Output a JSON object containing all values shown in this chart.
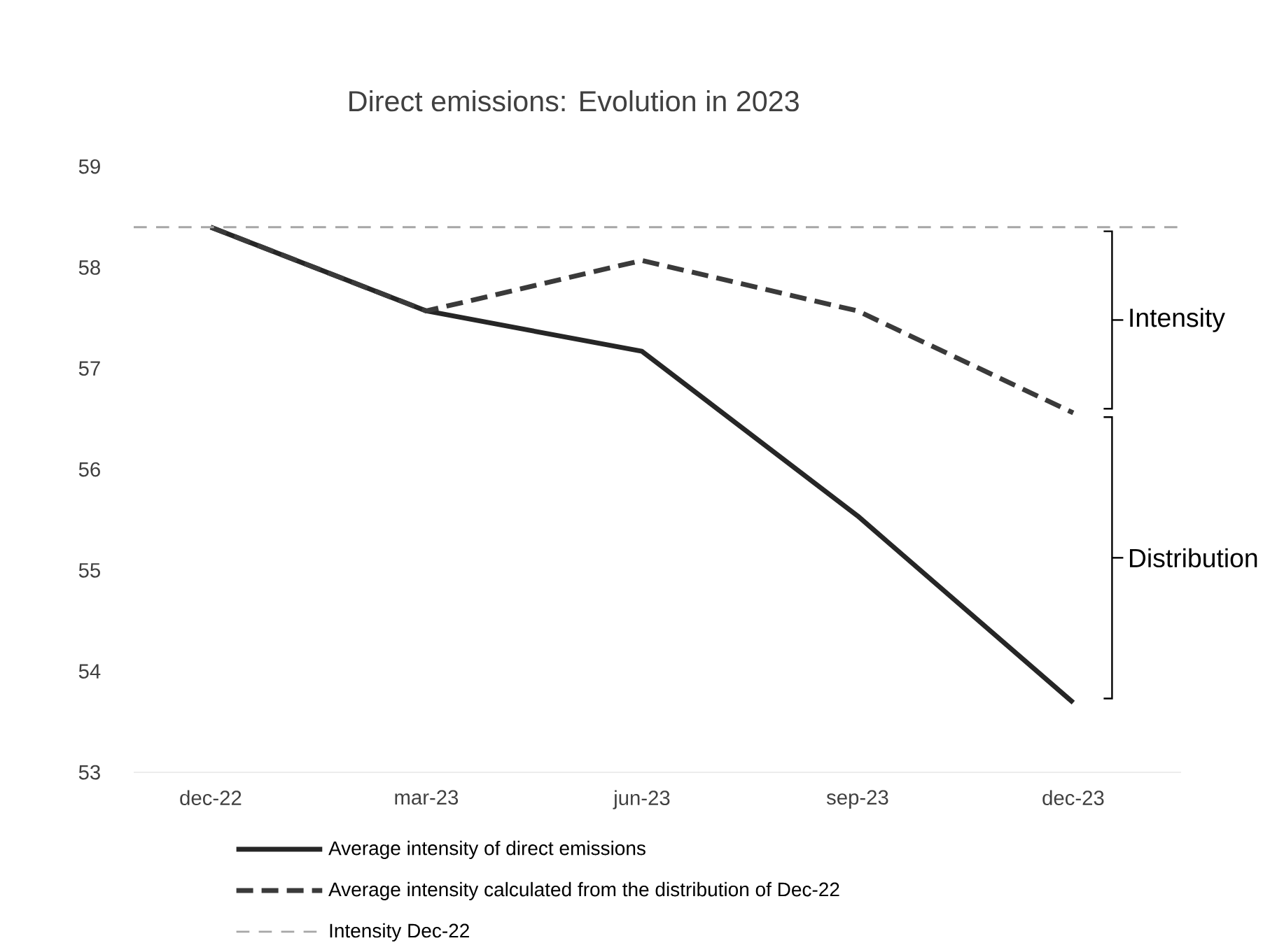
{
  "chart_data": {
    "type": "line",
    "title": "Direct emissions: Evolution in 2023",
    "categories": [
      "dec-22",
      "mar-23",
      "jun-23",
      "sep-23",
      "dec-23"
    ],
    "series": [
      {
        "name": "Average intensity of direct emissions",
        "color": "#262626",
        "line_style": "solid",
        "values": [
          58.4,
          57.57,
          57.17,
          55.54,
          53.69
        ]
      },
      {
        "name": "Average intensity calculated from the distribution of Dec-22",
        "color": "#3a3a3a",
        "line_style": "dashed",
        "values": [
          58.4,
          57.57,
          58.07,
          57.57,
          56.56
        ]
      }
    ],
    "ref_lines": [
      {
        "axis": "y",
        "value": 58.4,
        "label": "Intensity Dec-22",
        "color": "#a6a6a6",
        "line_style": "dashed"
      }
    ],
    "annotations": [
      "Intensity",
      "Distribution"
    ],
    "ylim": [
      53,
      59
    ],
    "yticks": [
      53,
      54,
      55,
      56,
      57,
      58,
      59
    ],
    "grid": false,
    "legend": "bottom",
    "marker": "none"
  }
}
